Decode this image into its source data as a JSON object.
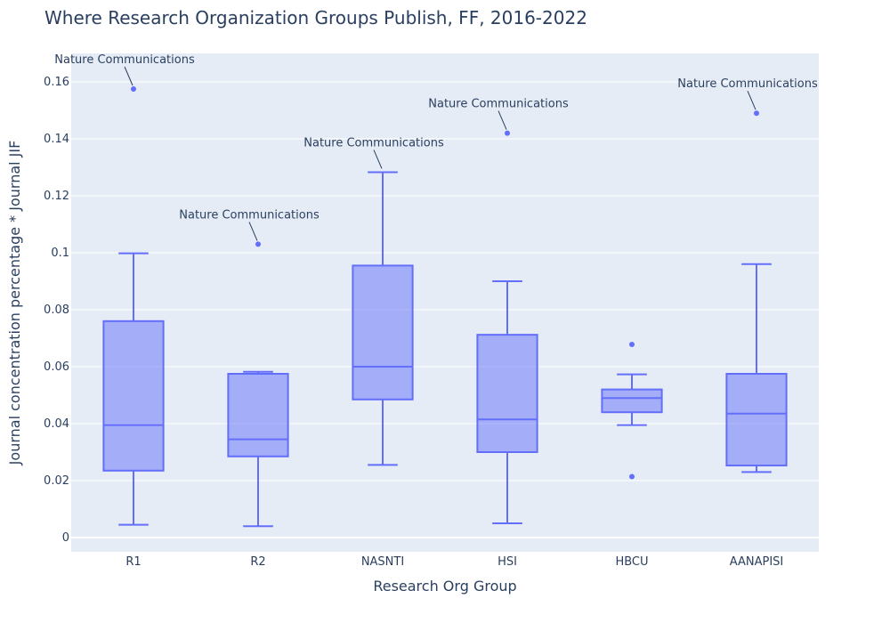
{
  "chart_data": {
    "type": "box",
    "title": "Where Research Organization Groups Publish, FF, 2016-2022",
    "xlabel": "Research Org Group",
    "ylabel": "Journal concentration percentage * Journal JIF",
    "ylim": [
      -0.005,
      0.17
    ],
    "yticks": [
      0,
      0.02,
      0.04,
      0.06,
      0.08,
      0.1,
      0.12,
      0.14,
      0.16
    ],
    "ytick_labels": [
      "0",
      "0.02",
      "0.04",
      "0.06",
      "0.08",
      "0.1",
      "0.12",
      "0.14",
      "0.16"
    ],
    "grid": true,
    "box_color": "#636efa",
    "box_fill": "rgba(99,110,250,0.5)",
    "plot_bg": "#e5ecf6",
    "categories": [
      "R1",
      "R2",
      "NASNTI",
      "HSI",
      "HBCU",
      "AANAPISI"
    ],
    "boxes": [
      {
        "category": "R1",
        "lowerfence": 0.0045,
        "q1": 0.0235,
        "median": 0.0395,
        "q3": 0.076,
        "upperfence": 0.0998,
        "outliers": [
          0.1575
        ]
      },
      {
        "category": "R2",
        "lowerfence": 0.004,
        "q1": 0.0285,
        "median": 0.0345,
        "q3": 0.0575,
        "upperfence": 0.0582,
        "outliers": [
          0.103
        ]
      },
      {
        "category": "NASNTI",
        "lowerfence": 0.0255,
        "q1": 0.0485,
        "median": 0.06,
        "q3": 0.0955,
        "upperfence": 0.1283,
        "outliers": []
      },
      {
        "category": "HSI",
        "lowerfence": 0.005,
        "q1": 0.03,
        "median": 0.0415,
        "q3": 0.0712,
        "upperfence": 0.09,
        "outliers": [
          0.142
        ]
      },
      {
        "category": "HBCU",
        "lowerfence": 0.0395,
        "q1": 0.044,
        "median": 0.049,
        "q3": 0.052,
        "upperfence": 0.0573,
        "outliers": [
          0.0678,
          0.0214
        ]
      },
      {
        "category": "AANAPISI",
        "lowerfence": 0.023,
        "q1": 0.0253,
        "median": 0.0435,
        "q3": 0.0575,
        "upperfence": 0.096,
        "outliers": [
          0.149
        ]
      }
    ],
    "annotations": [
      {
        "text": "Nature Communications",
        "category": "R1",
        "y": 0.1575,
        "ax": -10,
        "ay": -28
      },
      {
        "text": "Nature Communications",
        "category": "R2",
        "y": 0.103,
        "ax": -10,
        "ay": -28
      },
      {
        "text": "Nature Communications",
        "category": "NASNTI",
        "y": 0.1283,
        "ax": -10,
        "ay": -28
      },
      {
        "text": "Nature Communications",
        "category": "HSI",
        "y": 0.142,
        "ax": -10,
        "ay": -28
      },
      {
        "text": "Nature Communications",
        "category": "AANAPISI",
        "y": 0.149,
        "ax": -10,
        "ay": -28
      }
    ]
  }
}
